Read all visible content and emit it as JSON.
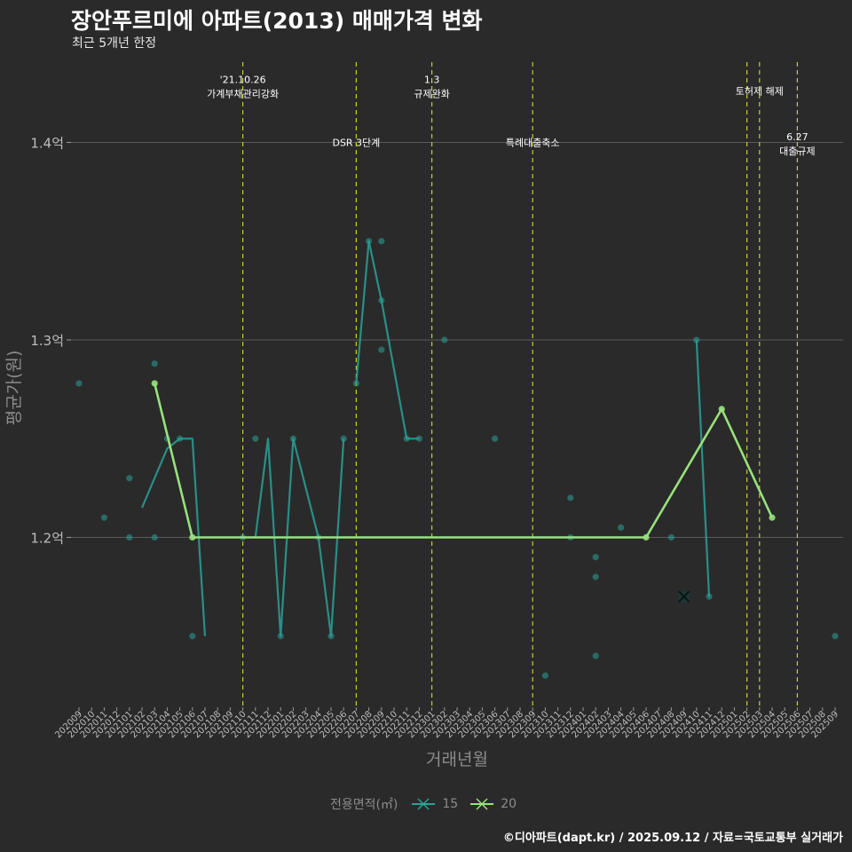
{
  "title": "장안푸르미에 아파트(2013) 매매가격 변화",
  "subtitle": "최근 5개년 한정",
  "caption": "©디아파트(dapt.kr) / 2025.09.12 / 자료=국토교통부 실거래가",
  "colors": {
    "background": "#2a2a2a",
    "grid": "#5a5a5a",
    "series_15": "#2aa198",
    "series_20": "#98e27c",
    "event_line": "#c8cc2a",
    "axis_text": "#9a9a9a"
  },
  "chart_data": {
    "type": "line",
    "title": "장안푸르미에 아파트(2013) 매매가격 변화",
    "subtitle": "최근 5개년 한정",
    "xlabel": "거래년월",
    "ylabel": "평균가(원)",
    "ylim": [
      1.115,
      1.44
    ],
    "yticks": [
      1.2,
      1.3,
      1.4
    ],
    "ytick_labels": [
      "1.2억",
      "1.3억",
      "1.4억"
    ],
    "categories": [
      "202009",
      "202010",
      "202011",
      "202012",
      "202101",
      "202102",
      "202103",
      "202104",
      "202105",
      "202106",
      "202107",
      "202108",
      "202109",
      "202110",
      "202111",
      "202112",
      "202201",
      "202202",
      "202203",
      "202204",
      "202205",
      "202206",
      "202207",
      "202208",
      "202209",
      "202210",
      "202211",
      "202212",
      "202301",
      "202302",
      "202303",
      "202304",
      "202305",
      "202306",
      "202307",
      "202308",
      "202309",
      "202310",
      "202311",
      "202312",
      "202401",
      "202402",
      "202403",
      "202404",
      "202405",
      "202406",
      "202407",
      "202408",
      "202409",
      "202410",
      "202411",
      "202412",
      "202501",
      "202502",
      "202503",
      "202504",
      "202505",
      "202506",
      "202507",
      "202508",
      "202509"
    ],
    "legend_title": "전용면적(㎡)",
    "series": [
      {
        "name": "15",
        "color": "#2aa198",
        "line": [
          [
            "202102",
            1.215
          ],
          [
            "202104",
            1.245
          ],
          [
            "202105",
            1.25
          ],
          [
            "202106",
            1.25
          ],
          [
            "202107",
            1.15
          ],
          [
            "202111",
            1.2
          ],
          [
            "202112",
            1.25
          ],
          [
            "202201",
            1.15
          ],
          [
            "202202",
            1.25
          ],
          [
            "202204",
            1.2
          ],
          [
            "202205",
            1.15
          ],
          [
            "202206",
            1.25
          ],
          [
            "202207",
            1.278
          ],
          [
            "202208",
            1.35
          ],
          [
            "202209",
            1.32
          ],
          [
            "202211",
            1.25
          ],
          [
            "202212",
            1.25
          ],
          [
            "202410",
            1.3
          ],
          [
            "202411",
            1.17
          ]
        ],
        "breaks_after": [
          "202107",
          "202206",
          "202212"
        ],
        "points": [
          [
            "202009",
            1.278
          ],
          [
            "202011",
            1.21
          ],
          [
            "202101",
            1.23
          ],
          [
            "202101",
            1.2
          ],
          [
            "202103",
            1.288
          ],
          [
            "202103",
            1.2
          ],
          [
            "202104",
            1.25
          ],
          [
            "202105",
            1.25
          ],
          [
            "202106",
            1.15
          ],
          [
            "202110",
            1.2
          ],
          [
            "202111",
            1.25
          ],
          [
            "202201",
            1.15
          ],
          [
            "202202",
            1.25
          ],
          [
            "202204",
            1.2
          ],
          [
            "202205",
            1.15
          ],
          [
            "202206",
            1.25
          ],
          [
            "202207",
            1.278
          ],
          [
            "202208",
            1.35
          ],
          [
            "202209",
            1.35
          ],
          [
            "202209",
            1.32
          ],
          [
            "202209",
            1.295
          ],
          [
            "202211",
            1.25
          ],
          [
            "202212",
            1.25
          ],
          [
            "202302",
            1.3
          ],
          [
            "202306",
            1.25
          ],
          [
            "202310",
            1.13
          ],
          [
            "202312",
            1.22
          ],
          [
            "202312",
            1.2
          ],
          [
            "202402",
            1.19
          ],
          [
            "202402",
            1.18
          ],
          [
            "202402",
            1.14
          ],
          [
            "202404",
            1.205
          ],
          [
            "202408",
            1.2
          ],
          [
            "202410",
            1.3
          ],
          [
            "202411",
            1.17
          ],
          [
            "202509",
            1.15
          ]
        ],
        "cross_point": [
          "202409",
          1.17
        ]
      },
      {
        "name": "20",
        "color": "#98e27c",
        "line": [
          [
            "202103",
            1.278
          ],
          [
            "202106",
            1.2
          ],
          [
            "202406",
            1.2
          ],
          [
            "202412",
            1.265
          ],
          [
            "202504",
            1.21
          ]
        ],
        "points": [
          [
            "202103",
            1.278
          ],
          [
            "202106",
            1.2
          ],
          [
            "202406",
            1.2
          ],
          [
            "202412",
            1.265
          ],
          [
            "202504",
            1.21
          ]
        ]
      }
    ],
    "events": [
      {
        "x": "202110",
        "label_lines": [
          "'21.10.26",
          "가계부채관리강화"
        ],
        "label_y": 1.432
      },
      {
        "x": "202207",
        "label_lines": [
          "DSR 3단계"
        ],
        "label_y": 1.4
      },
      {
        "x": "202301",
        "label_lines": [
          "1.3",
          "규제완화"
        ],
        "label_y": 1.432
      },
      {
        "x": "202309",
        "label_lines": [
          "특례대출축소"
        ],
        "label_y": 1.4
      },
      {
        "x": "202502",
        "label_lines": [],
        "label_y": 1.426
      },
      {
        "x": "202503",
        "label_lines": [
          "토허제 해제"
        ],
        "label_y": 1.426
      },
      {
        "x": "202506",
        "label_lines": [
          "6.27",
          "대출규제"
        ],
        "label_y": 1.403
      }
    ]
  }
}
